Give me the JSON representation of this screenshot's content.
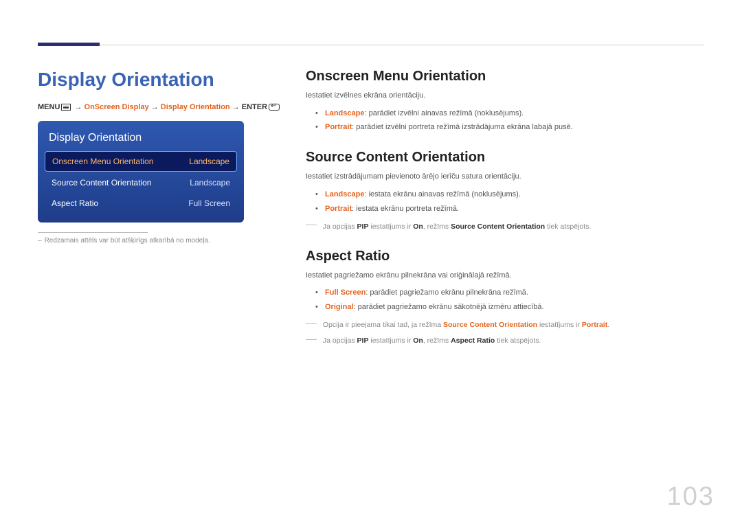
{
  "colors": {
    "accent_blue": "#3a63b5",
    "accent_orange": "#e4631e",
    "panel_grad_top": "#2e58b0",
    "panel_grad_bot": "#1f3d8a",
    "selected_bg": "#0a1a5c",
    "selected_border": "#6fa7ff",
    "text_body": "#555555",
    "text_muted": "#888888",
    "rule": "#cccccc",
    "thick_rule": "#2a2f6d",
    "page_num": "#d0d0d0"
  },
  "page_number": "103",
  "main_title": "Display Orientation",
  "breadcrumb": {
    "menu_label": "MENU",
    "arrow": " → ",
    "p1": "OnScreen Display",
    "p2": "Display Orientation",
    "enter_label": "ENTER"
  },
  "menu_panel": {
    "title": "Display Orientation",
    "rows": [
      {
        "label": "Onscreen Menu Orientation",
        "value": "Landscape",
        "selected": true
      },
      {
        "label": "Source Content Orientation",
        "value": "Landscape",
        "selected": false
      },
      {
        "label": "Aspect Ratio",
        "value": "Full Screen",
        "selected": false
      }
    ]
  },
  "left_footnote": "Redzamais attēls var būt atšķirīgs atkarībā no modeļa.",
  "sections": {
    "onscreen": {
      "heading": "Onscreen Menu Orientation",
      "intro": "Iestatiet izvēlnes ekrāna orientāciju.",
      "b1_kw": "Landscape",
      "b1_rest": ": parādiet izvēlni ainavas režīmā (noklusējums).",
      "b2_kw": "Portrait",
      "b2_rest": ": parādiet izvēlni portreta režīmā izstrādājuma ekrāna labajā pusē."
    },
    "source": {
      "heading": "Source Content Orientation",
      "intro": "Iestatiet izstrādājumam pievienoto ārējo ierīču satura orientāciju.",
      "b1_kw": "Landscape",
      "b1_rest": ": iestata ekrānu ainavas režīmā (noklusējums).",
      "b2_kw": "Portrait",
      "b2_rest": ": iestata ekrānu portreta režīmā.",
      "note_pre": "Ja opcijas ",
      "note_kw1": "PIP",
      "note_mid1": " iestatījums ir ",
      "note_kw2": "On",
      "note_mid2": ", režīms ",
      "note_kw3": "Source Content Orientation",
      "note_post": " tiek atspējots."
    },
    "aspect": {
      "heading": "Aspect Ratio",
      "intro": "Iestatiet pagriežamo ekrānu pilnekrāna vai oriģinālajā režīmā.",
      "b1_kw": "Full Screen",
      "b1_rest": ": parādiet pagriežamo ekrānu pilnekrāna režīmā.",
      "b2_kw": "Original",
      "b2_rest": ": parādiet pagriežamo ekrānu sākotnējā izmēru attiecībā.",
      "note1_pre": "Opcija ir pieejama tikai tad, ja režīma ",
      "note1_kw1": "Source Content Orientation",
      "note1_mid": " iestatījums ir ",
      "note1_kw2": "Portrait",
      "note1_post": ".",
      "note2_pre": "Ja opcijas ",
      "note2_kw1": "PIP",
      "note2_mid1": " iestatījums ir ",
      "note2_kw2": "On",
      "note2_mid2": ", režīms ",
      "note2_kw3": "Aspect Ratio",
      "note2_post": " tiek atspējots."
    }
  }
}
